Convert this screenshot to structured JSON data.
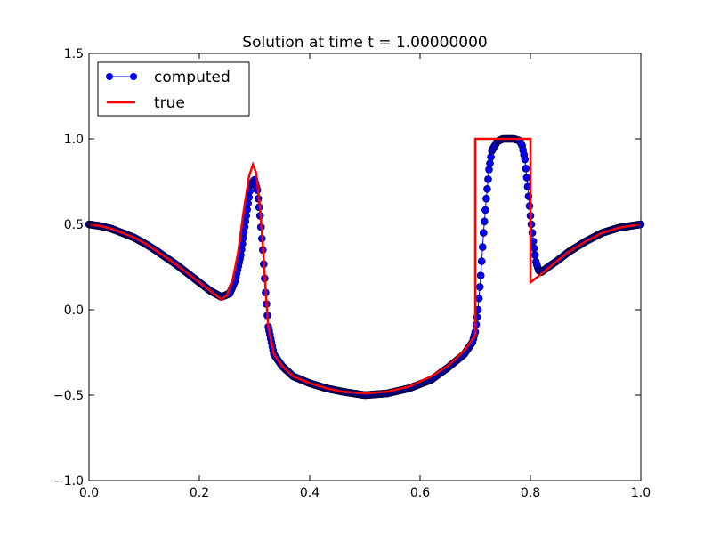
{
  "chart_data": {
    "type": "line",
    "title": "Solution at time t =     1.00000000",
    "xlabel": "",
    "ylabel": "",
    "xlim": [
      0.0,
      1.0
    ],
    "ylim": [
      -1.0,
      1.5
    ],
    "x_ticks": [
      "0.0",
      "0.2",
      "0.4",
      "0.6",
      "0.8",
      "1.0"
    ],
    "y_ticks": [
      "1.5",
      "1.0",
      "0.5",
      "0.0",
      "−0.5",
      "−1.0"
    ],
    "grid": false,
    "legend_position": "top-left",
    "series": [
      {
        "name": "computed",
        "color": "#0000ff",
        "marker": "circle",
        "points": [
          [
            0.0,
            0.5
          ],
          [
            0.02,
            0.49
          ],
          [
            0.04,
            0.475
          ],
          [
            0.06,
            0.45
          ],
          [
            0.08,
            0.425
          ],
          [
            0.1,
            0.39
          ],
          [
            0.12,
            0.35
          ],
          [
            0.14,
            0.305
          ],
          [
            0.16,
            0.26
          ],
          [
            0.18,
            0.21
          ],
          [
            0.2,
            0.16
          ],
          [
            0.22,
            0.11
          ],
          [
            0.24,
            0.075
          ],
          [
            0.255,
            0.095
          ],
          [
            0.265,
            0.17
          ],
          [
            0.275,
            0.32
          ],
          [
            0.285,
            0.55
          ],
          [
            0.293,
            0.73
          ],
          [
            0.3,
            0.76
          ],
          [
            0.305,
            0.7
          ],
          [
            0.31,
            0.55
          ],
          [
            0.315,
            0.35
          ],
          [
            0.32,
            0.1
          ],
          [
            0.325,
            -0.1
          ],
          [
            0.335,
            -0.26
          ],
          [
            0.35,
            -0.33
          ],
          [
            0.37,
            -0.39
          ],
          [
            0.4,
            -0.43
          ],
          [
            0.43,
            -0.46
          ],
          [
            0.46,
            -0.48
          ],
          [
            0.5,
            -0.5
          ],
          [
            0.54,
            -0.49
          ],
          [
            0.58,
            -0.46
          ],
          [
            0.62,
            -0.41
          ],
          [
            0.65,
            -0.34
          ],
          [
            0.68,
            -0.26
          ],
          [
            0.695,
            -0.19
          ],
          [
            0.7,
            -0.13
          ],
          [
            0.705,
            0.0
          ],
          [
            0.71,
            0.2
          ],
          [
            0.715,
            0.45
          ],
          [
            0.72,
            0.65
          ],
          [
            0.725,
            0.82
          ],
          [
            0.73,
            0.93
          ],
          [
            0.74,
            0.985
          ],
          [
            0.75,
            1.0
          ],
          [
            0.76,
            1.0
          ],
          [
            0.77,
            1.0
          ],
          [
            0.78,
            0.99
          ],
          [
            0.785,
            0.96
          ],
          [
            0.79,
            0.88
          ],
          [
            0.795,
            0.72
          ],
          [
            0.8,
            0.55
          ],
          [
            0.805,
            0.4
          ],
          [
            0.81,
            0.28
          ],
          [
            0.815,
            0.23
          ],
          [
            0.82,
            0.22
          ],
          [
            0.83,
            0.245
          ],
          [
            0.85,
            0.29
          ],
          [
            0.87,
            0.34
          ],
          [
            0.9,
            0.4
          ],
          [
            0.93,
            0.45
          ],
          [
            0.96,
            0.48
          ],
          [
            1.0,
            0.5
          ]
        ]
      },
      {
        "name": "true",
        "color": "#ff0000",
        "marker": "none",
        "points": [
          [
            0.0,
            0.5
          ],
          [
            0.02,
            0.49
          ],
          [
            0.04,
            0.475
          ],
          [
            0.06,
            0.45
          ],
          [
            0.08,
            0.425
          ],
          [
            0.1,
            0.39
          ],
          [
            0.12,
            0.35
          ],
          [
            0.14,
            0.305
          ],
          [
            0.16,
            0.26
          ],
          [
            0.18,
            0.21
          ],
          [
            0.2,
            0.16
          ],
          [
            0.22,
            0.11
          ],
          [
            0.24,
            0.06
          ],
          [
            0.25,
            0.085
          ],
          [
            0.26,
            0.17
          ],
          [
            0.27,
            0.33
          ],
          [
            0.28,
            0.57
          ],
          [
            0.29,
            0.78
          ],
          [
            0.297,
            0.85
          ],
          [
            0.303,
            0.8
          ],
          [
            0.31,
            0.6
          ],
          [
            0.315,
            0.38
          ],
          [
            0.32,
            0.12
          ],
          [
            0.325,
            -0.1
          ],
          [
            0.335,
            -0.26
          ],
          [
            0.35,
            -0.33
          ],
          [
            0.37,
            -0.39
          ],
          [
            0.4,
            -0.43
          ],
          [
            0.43,
            -0.46
          ],
          [
            0.46,
            -0.48
          ],
          [
            0.5,
            -0.49
          ],
          [
            0.54,
            -0.48
          ],
          [
            0.58,
            -0.45
          ],
          [
            0.62,
            -0.39
          ],
          [
            0.65,
            -0.33
          ],
          [
            0.68,
            -0.24
          ],
          [
            0.7,
            -0.15
          ],
          [
            0.7,
            1.0
          ],
          [
            0.8,
            1.0
          ],
          [
            0.8,
            0.16
          ],
          [
            0.82,
            0.21
          ],
          [
            0.85,
            0.29
          ],
          [
            0.87,
            0.34
          ],
          [
            0.9,
            0.4
          ],
          [
            0.93,
            0.45
          ],
          [
            0.96,
            0.48
          ],
          [
            1.0,
            0.5
          ]
        ]
      }
    ]
  }
}
